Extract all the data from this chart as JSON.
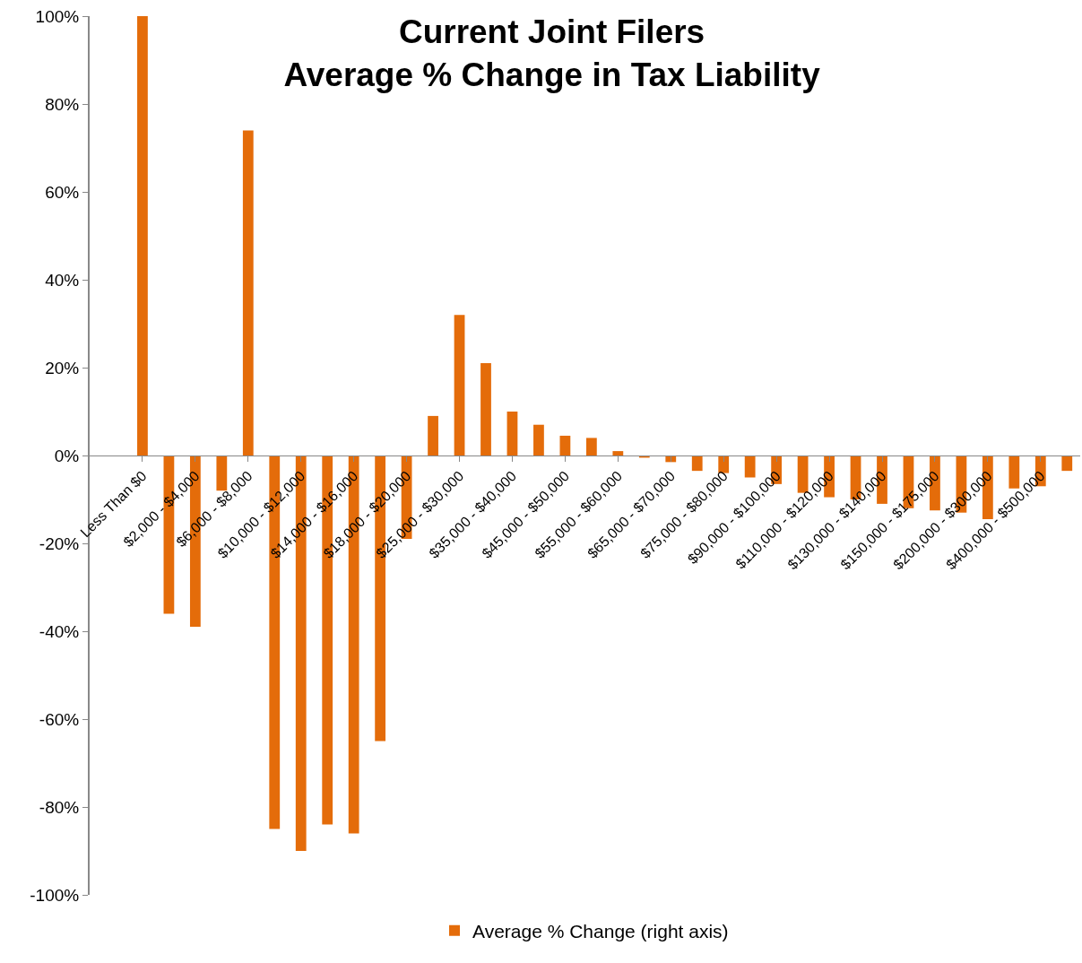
{
  "chart_data": {
    "type": "bar",
    "title": "Current Joint Filers\nAverage % Change in Tax Liability",
    "categories": [
      "Less Than $0",
      null,
      "$2,000 - $4,000",
      null,
      "$6,000 - $8,000",
      null,
      "$10,000 - $12,000",
      null,
      "$14,000 - $16,000",
      null,
      "$18,000 - $20,000",
      null,
      "$25,000 - $30,000",
      null,
      "$35,000 - $40,000",
      null,
      "$45,000 - $50,000",
      null,
      "$55,000 - $60,000",
      null,
      "$65,000 - $70,000",
      null,
      "$75,000 - $80,000",
      null,
      "$90,000 - $100,000",
      null,
      "$110,000 - $120,000",
      null,
      "$130,000 - $140,000",
      null,
      "$150,000 - $175,000",
      null,
      "$200,000 - $300,000",
      null,
      "$400,000 - $500,000",
      null
    ],
    "series": [
      {
        "name": "Average % Change (right axis)",
        "color": "#e46c0a",
        "values": [
          100,
          -36,
          -39,
          -8,
          74,
          -85,
          -90,
          -84,
          -86,
          -65,
          -19,
          9,
          32,
          21,
          10,
          7,
          4.5,
          4,
          1,
          -0.5,
          -1.5,
          -3.5,
          -4,
          -5,
          -6.5,
          -8.5,
          -9.5,
          -10,
          -11,
          -12,
          -12.5,
          -13,
          -14.5,
          -7.5,
          -7,
          -3.5
        ]
      }
    ],
    "ylim": [
      -100,
      100
    ],
    "yticks": [
      {
        "value": -100,
        "label": "-100%"
      },
      {
        "value": -80,
        "label": "-80%"
      },
      {
        "value": -60,
        "label": "-60%"
      },
      {
        "value": -40,
        "label": "-40%"
      },
      {
        "value": -20,
        "label": "-20%"
      },
      {
        "value": 0,
        "label": "0%"
      },
      {
        "value": 20,
        "label": "20%"
      },
      {
        "value": 40,
        "label": "40%"
      },
      {
        "value": 60,
        "label": "60%"
      },
      {
        "value": 80,
        "label": "80%"
      },
      {
        "value": 100,
        "label": "100%"
      }
    ],
    "grid": false,
    "legend": "bottom"
  }
}
